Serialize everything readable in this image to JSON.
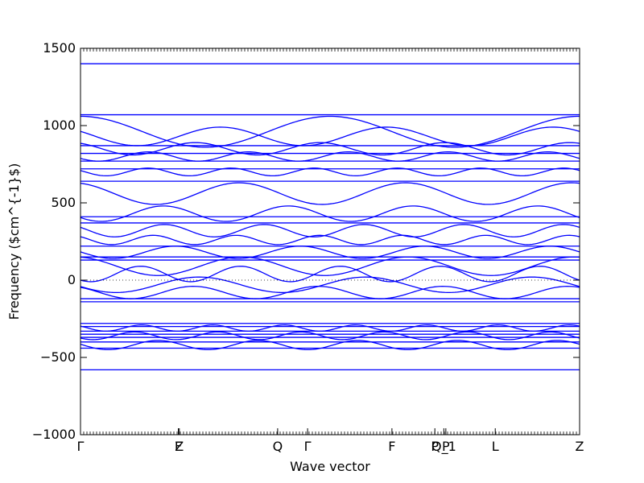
{
  "chart_data": {
    "type": "line",
    "title": "",
    "xlabel": "Wave vector",
    "ylabel": "Frequency ($cm^{-1}$)",
    "ylim": [
      -1000,
      1500
    ],
    "y_ticks": [
      1500,
      1000,
      500,
      0,
      -500,
      -1000
    ],
    "y_tick_labels": [
      "1500",
      "1000",
      "500",
      "0",
      "−500",
      "−1000"
    ],
    "x_ticks": [
      {
        "label": "Γ",
        "pos": 0
      },
      {
        "label": "F",
        "pos": 0.196
      },
      {
        "label": "Z",
        "pos": 0.198
      },
      {
        "label": "Q",
        "pos": 0.395
      },
      {
        "label": "Γ",
        "pos": 0.455
      },
      {
        "label": "F",
        "pos": 0.624
      },
      {
        "label": "P",
        "pos": 0.71
      },
      {
        "label": "Q_1",
        "pos": 0.728
      },
      {
        "label": "P",
        "pos": 0.732
      },
      {
        "label": "L",
        "pos": 0.831
      },
      {
        "label": "Z",
        "pos": 1.0
      }
    ],
    "zero_line": "dotted",
    "grid": false,
    "line_color": "#0000ff",
    "flat_bands": [
      1400,
      1070,
      870,
      820,
      770,
      720,
      640,
      410,
      370,
      220,
      150,
      130,
      -120,
      -140,
      -280,
      -300,
      -330,
      -350,
      -370,
      -400,
      -440,
      -580
    ],
    "dispersive_bands": [
      {
        "y": 960,
        "a": 100,
        "p": 2.0,
        "ph": 0.0
      },
      {
        "y": 930,
        "a": 60,
        "p": 3.0,
        "ph": 1.0
      },
      {
        "y": 850,
        "a": 40,
        "p": 4.0,
        "ph": 0.5
      },
      {
        "y": 800,
        "a": 30,
        "p": 5.0,
        "ph": 2.0
      },
      {
        "y": 700,
        "a": 25,
        "p": 6.0,
        "ph": 1.2
      },
      {
        "y": 560,
        "a": 70,
        "p": 3.0,
        "ph": 0.3
      },
      {
        "y": 430,
        "a": 50,
        "p": 4.0,
        "ph": 2.1
      },
      {
        "y": 320,
        "a": 40,
        "p": 5.0,
        "ph": 1.0
      },
      {
        "y": 260,
        "a": 30,
        "p": 6.0,
        "ph": 0.8
      },
      {
        "y": 180,
        "a": 40,
        "p": 4.0,
        "ph": 1.5
      },
      {
        "y": 90,
        "a": 60,
        "p": 3.0,
        "ph": 0.2
      },
      {
        "y": 40,
        "a": 50,
        "p": 5.0,
        "ph": 2.5
      },
      {
        "y": -30,
        "a": 50,
        "p": 3.0,
        "ph": 1.8
      },
      {
        "y": -80,
        "a": 40,
        "p": 4.0,
        "ph": 0.6
      },
      {
        "y": -310,
        "a": 20,
        "p": 7.0,
        "ph": 0.9
      },
      {
        "y": -360,
        "a": 25,
        "p": 6.0,
        "ph": 2.2
      },
      {
        "y": -420,
        "a": 30,
        "p": 5.0,
        "ph": 1.4
      }
    ]
  }
}
